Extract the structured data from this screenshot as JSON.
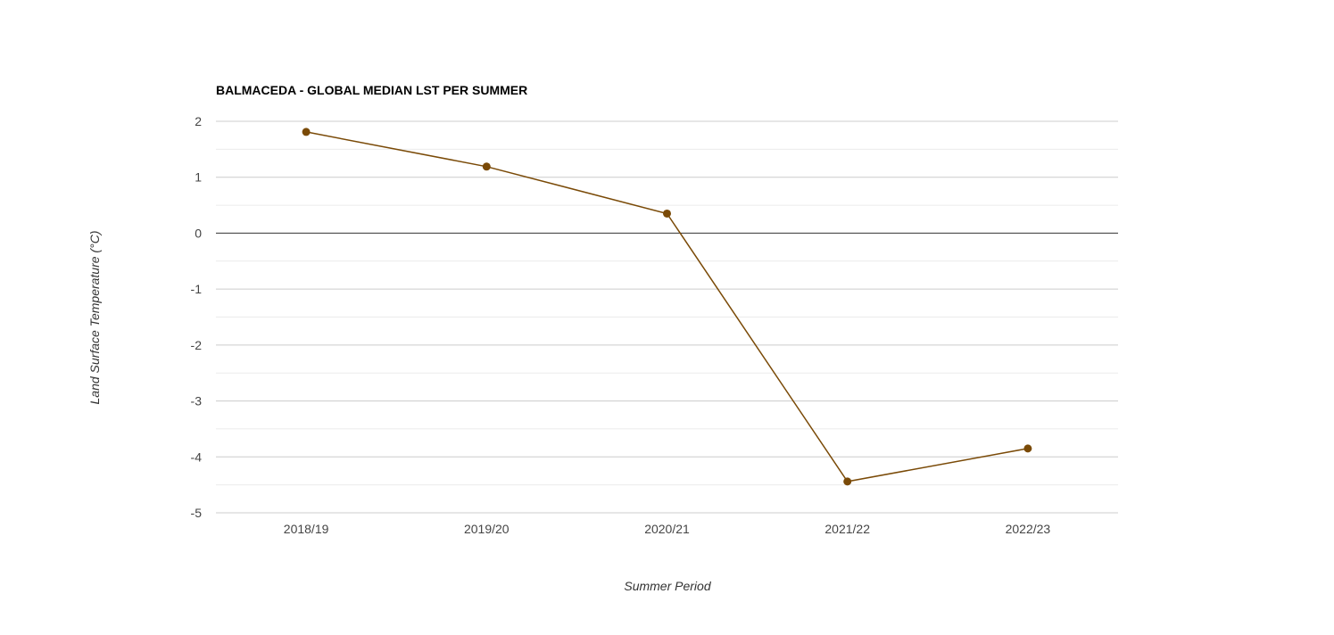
{
  "chart_data": {
    "type": "line",
    "title": "BALMACEDA - GLOBAL MEDIAN LST PER SUMMER",
    "xlabel": "Summer Period",
    "ylabel": "Land Surface Temperature (°C)",
    "categories": [
      "2018/19",
      "2019/20",
      "2020/21",
      "2021/22",
      "2022/23"
    ],
    "series": [
      {
        "values": [
          1.81,
          1.19,
          0.35,
          -4.44,
          -3.85
        ],
        "color": "#7a4a07"
      }
    ],
    "ylim": [
      -5,
      2
    ],
    "yticks": [
      "2",
      "1",
      "0",
      "-1",
      "-2",
      "-3",
      "-4",
      "-5"
    ],
    "grid": true,
    "legend": "none"
  }
}
